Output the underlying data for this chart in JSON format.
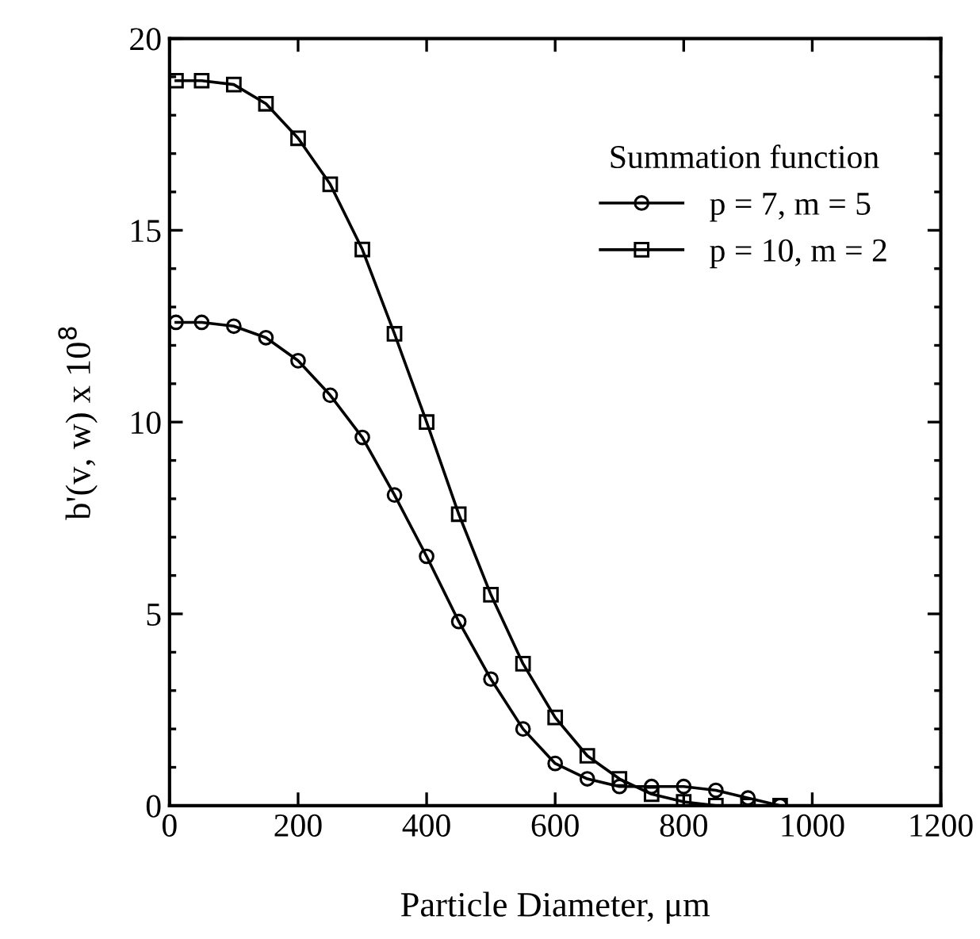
{
  "chart_data": {
    "type": "line",
    "xlabel": "Particle Diameter, μm",
    "ylabel": "b'(v, w) x 10$^{8}$",
    "legend_title": "Summation function",
    "x": [
      10,
      50,
      100,
      150,
      200,
      250,
      300,
      350,
      400,
      450,
      500,
      550,
      600,
      650,
      700,
      750,
      800,
      850,
      900,
      950
    ],
    "series": [
      {
        "name": "p = 7, m = 5",
        "color": "#000000",
        "marker": "circle",
        "values": [
          12.6,
          12.6,
          12.5,
          12.2,
          11.6,
          10.7,
          9.6,
          8.1,
          6.5,
          4.8,
          3.3,
          2.0,
          1.1,
          0.7,
          0.5,
          0.5,
          0.5,
          0.4,
          0.2,
          0.0
        ]
      },
      {
        "name": "p = 10, m = 2",
        "color": "#000000",
        "marker": "square",
        "values": [
          18.9,
          18.9,
          18.8,
          18.3,
          17.4,
          16.2,
          14.5,
          12.3,
          10.0,
          7.6,
          5.5,
          3.7,
          2.3,
          1.3,
          0.7,
          0.3,
          0.1,
          0.0,
          0.0,
          0.0
        ]
      }
    ],
    "xlim": [
      0,
      1200
    ],
    "xticks": [
      0,
      200,
      400,
      600,
      800,
      1000,
      1200
    ],
    "ylim": [
      0,
      20
    ],
    "yticks": [
      0,
      5,
      10,
      15,
      20
    ],
    "grid": false,
    "legend": "top right",
    "line_style": "solid"
  }
}
